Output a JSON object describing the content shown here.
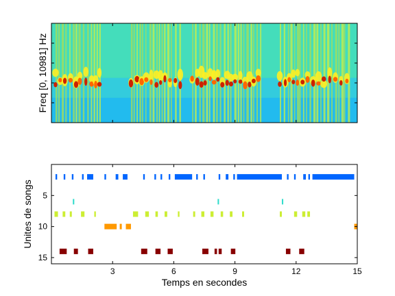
{
  "chart_data": [
    {
      "type": "heatmap",
      "title": "",
      "xlabel": "",
      "ylabel": "Freq [0, 10981] Hz",
      "xlim": [
        0,
        15
      ],
      "ylim": [
        0,
        10981
      ],
      "colormap": "jet",
      "song_bursts_s": [
        [
          0.2,
          2.5
        ],
        [
          3.9,
          6.4
        ],
        [
          6.9,
          10.3
        ],
        [
          11.2,
          14.6
        ]
      ],
      "dominant_band_fraction": [
        0.35,
        0.55
      ]
    },
    {
      "type": "scatter",
      "title": "",
      "xlabel": "Temps en secondes",
      "ylabel": "Unites de songs",
      "xlim": [
        0,
        15
      ],
      "ylim": [
        16,
        0
      ],
      "x_ticks": [
        3,
        6,
        9,
        12,
        15
      ],
      "y_ticks": [
        5,
        10,
        15
      ],
      "series": [
        {
          "unit": 2,
          "color": "#0066ff",
          "segments": [
            [
              0.2,
              0.28
            ],
            [
              0.6,
              0.68
            ],
            [
              1.0,
              1.08
            ],
            [
              1.5,
              1.58
            ],
            [
              1.75,
              2.05
            ],
            [
              2.6,
              2.68
            ],
            [
              3.15,
              3.28
            ],
            [
              3.5,
              3.73
            ],
            [
              4.5,
              4.58
            ],
            [
              5.05,
              5.13
            ],
            [
              5.35,
              5.43
            ],
            [
              5.75,
              5.83
            ],
            [
              6.05,
              6.9
            ],
            [
              7.1,
              7.18
            ],
            [
              7.45,
              7.53
            ],
            [
              8.2,
              8.28
            ],
            [
              8.55,
              8.68
            ],
            [
              8.92,
              9.0
            ],
            [
              9.1,
              11.3
            ],
            [
              11.55,
              11.63
            ],
            [
              11.9,
              11.98
            ],
            [
              12.35,
              12.48
            ],
            [
              12.6,
              12.68
            ],
            [
              12.8,
              14.85
            ],
            [
              15.0,
              15.08
            ]
          ]
        },
        {
          "unit": 6,
          "color": "#33ddcc",
          "segments": [
            [
              1.05,
              1.12
            ],
            [
              8.15,
              8.22
            ],
            [
              11.3,
              11.37
            ]
          ]
        },
        {
          "unit": 8,
          "color": "#ccee33",
          "segments": [
            [
              0.15,
              0.32
            ],
            [
              0.55,
              0.68
            ],
            [
              0.9,
              1.0
            ],
            [
              1.45,
              1.62
            ],
            [
              2.1,
              2.18
            ],
            [
              4.0,
              4.25
            ],
            [
              4.6,
              4.78
            ],
            [
              5.1,
              5.22
            ],
            [
              5.55,
              5.68
            ],
            [
              6.2,
              6.28
            ],
            [
              6.95,
              7.05
            ],
            [
              7.35,
              7.5
            ],
            [
              7.8,
              7.95
            ],
            [
              8.3,
              8.42
            ],
            [
              8.75,
              8.88
            ],
            [
              9.35,
              9.45
            ],
            [
              11.2,
              11.3
            ],
            [
              11.9,
              12.05
            ],
            [
              12.3,
              12.45
            ],
            [
              12.55,
              12.68
            ]
          ]
        },
        {
          "unit": 10,
          "color": "#ff9900",
          "segments": [
            [
              2.6,
              3.2
            ],
            [
              3.35,
              3.45
            ],
            [
              3.65,
              3.9
            ],
            [
              14.85,
              15.0
            ]
          ]
        },
        {
          "unit": 14,
          "color": "#880000",
          "segments": [
            [
              0.4,
              0.75
            ],
            [
              1.1,
              1.3
            ],
            [
              1.8,
              2.05
            ],
            [
              4.4,
              4.7
            ],
            [
              5.1,
              5.35
            ],
            [
              5.7,
              5.95
            ],
            [
              7.4,
              7.7
            ],
            [
              8.0,
              8.12
            ],
            [
              8.2,
              8.35
            ],
            [
              8.8,
              9.02
            ],
            [
              11.5,
              11.72
            ],
            [
              12.15,
              12.4
            ]
          ]
        }
      ]
    }
  ]
}
